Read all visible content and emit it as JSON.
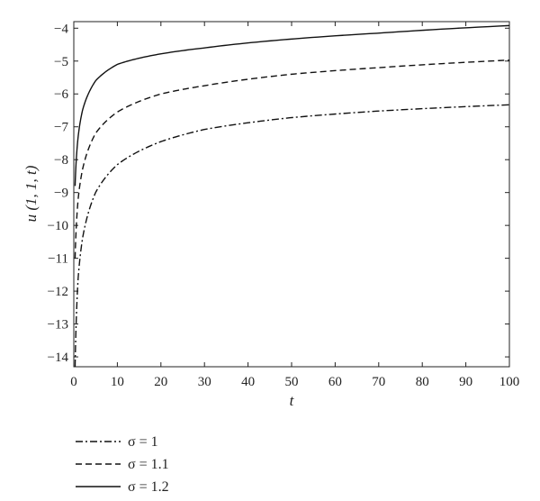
{
  "chart_data": {
    "type": "line",
    "title": "",
    "xlabel": "t",
    "ylabel": "u (1, 1, t)",
    "xlim": [
      0,
      100
    ],
    "ylim": [
      -14.3,
      -3.8
    ],
    "xticks": [
      0,
      10,
      20,
      30,
      40,
      50,
      60,
      70,
      80,
      90,
      100
    ],
    "yticks": [
      -4,
      -5,
      -6,
      -7,
      -8,
      -9,
      -10,
      -11,
      -12,
      -13,
      -14
    ],
    "grid": false,
    "legend_position": "below-left",
    "series": [
      {
        "name": "σ = 1",
        "style": "dashdot",
        "x": [
          0.3,
          1,
          2,
          5,
          10,
          20,
          30,
          50,
          70,
          100
        ],
        "y": [
          -14.3,
          -11.6,
          -10.4,
          -9.0,
          -8.15,
          -7.45,
          -7.08,
          -6.72,
          -6.52,
          -6.33
        ]
      },
      {
        "name": "σ = 1.1",
        "style": "dashed",
        "x": [
          0.3,
          1,
          2,
          5,
          10,
          20,
          30,
          50,
          70,
          100
        ],
        "y": [
          -11.0,
          -9.2,
          -8.3,
          -7.2,
          -6.55,
          -6.0,
          -5.75,
          -5.4,
          -5.2,
          -4.97
        ]
      },
      {
        "name": "σ = 1.2",
        "style": "solid",
        "x": [
          0.3,
          1,
          2,
          5,
          10,
          20,
          30,
          50,
          70,
          100
        ],
        "y": [
          -8.8,
          -7.3,
          -6.5,
          -5.6,
          -5.1,
          -4.78,
          -4.6,
          -4.33,
          -4.15,
          -3.92
        ]
      }
    ]
  }
}
